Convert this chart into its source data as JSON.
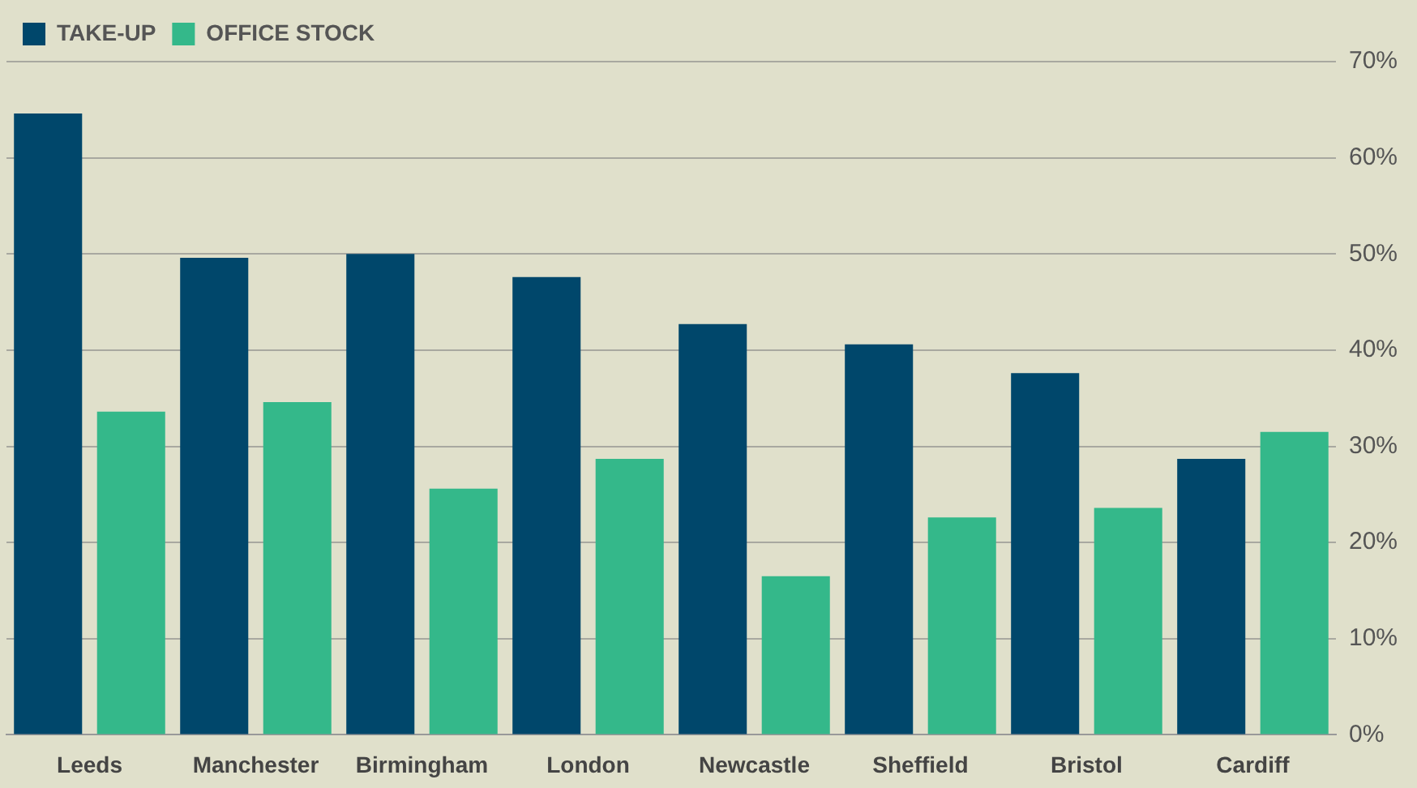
{
  "chart_data": {
    "type": "bar",
    "categories": [
      "Leeds",
      "Manchester",
      "Birmingham",
      "London",
      "Newcastle",
      "Sheffield",
      "Bristol",
      "Cardiff"
    ],
    "series": [
      {
        "name": "TAKE-UP",
        "color": "#00476b",
        "values": [
          64.6,
          49.6,
          50,
          47.6,
          42.7,
          40.6,
          37.6,
          28.7
        ]
      },
      {
        "name": "OFFICE STOCK",
        "color": "#34b88a",
        "values": [
          33.6,
          34.6,
          25.6,
          28.7,
          16.5,
          22.6,
          23.6,
          31.5
        ]
      }
    ],
    "ylim": [
      0,
      70
    ],
    "yticks": [
      {
        "value": 0,
        "label": "0%"
      },
      {
        "value": 10,
        "label": "10%"
      },
      {
        "value": 20,
        "label": "20%"
      },
      {
        "value": 30,
        "label": "30%"
      },
      {
        "value": 40,
        "label": "40%"
      },
      {
        "value": 50,
        "label": "50%"
      },
      {
        "value": 60,
        "label": "60%"
      },
      {
        "value": 70,
        "label": "70%"
      }
    ],
    "grid": "y",
    "legend": "top left"
  }
}
